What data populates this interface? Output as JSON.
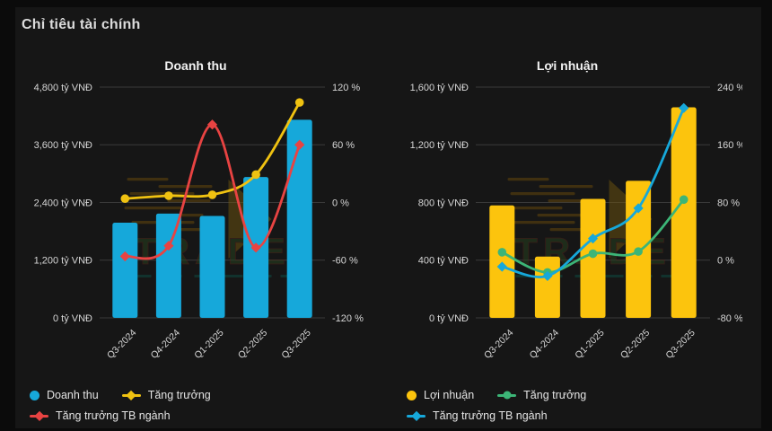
{
  "page_title": "Chỉ tiêu tài chính",
  "watermark_text": "TRADE",
  "colors": {
    "background": "#0b0b0b",
    "card": "#161616",
    "grid": "#3a3a3a",
    "axis_text": "#d6d6d6",
    "title_text": "#f2f2f2",
    "cyan": "#16a8da",
    "yellow": "#fcc40d",
    "red": "#e84342",
    "green": "#3cb577"
  },
  "chart_data": [
    {
      "type": "bar",
      "title": "Doanh thu",
      "categories": [
        "Q3-2024",
        "Q4-2024",
        "Q1-2025",
        "Q2-2025",
        "Q3-2025"
      ],
      "grid": true,
      "legend_position": "bottom",
      "left_axis": {
        "unit": "tỷ VNĐ",
        "min": 0,
        "max": 4800,
        "ticks": [
          0,
          1200,
          2400,
          3600,
          4800
        ],
        "labels": [
          "0 tỷ VNĐ",
          "1,200 tỷ VNĐ",
          "2,400 tỷ VNĐ",
          "3,600 tỷ VNĐ",
          "4,800 tỷ VNĐ"
        ]
      },
      "right_axis": {
        "unit": "%",
        "min": -120,
        "max": 120,
        "ticks": [
          -120,
          -60,
          0,
          60,
          120
        ],
        "labels": [
          "-120 %",
          "-60 %",
          "0 %",
          "60 %",
          "120 %"
        ]
      },
      "series": [
        {
          "name": "Doanh thu",
          "type": "bar",
          "axis": "left",
          "color": "#16a8da",
          "values": [
            1980,
            2170,
            2120,
            2930,
            4120
          ]
        },
        {
          "name": "Tăng trưởng",
          "type": "line",
          "axis": "right",
          "color": "#f0c211",
          "marker": "circle",
          "values": [
            4,
            7,
            8,
            29,
            104
          ]
        },
        {
          "name": "Tăng trưởng TB ngành",
          "type": "line",
          "axis": "right",
          "color": "#e84342",
          "marker": "diamond",
          "values": [
            -56,
            -45,
            81,
            -47,
            60
          ]
        }
      ],
      "legend": [
        {
          "label": "Doanh thu",
          "marker": "dot",
          "color": "#16a8da"
        },
        {
          "label": "Tăng trưởng",
          "marker": "line-diamond",
          "color": "#f0c211"
        },
        {
          "label": "Tăng trưởng TB ngành",
          "marker": "line-diamond",
          "color": "#e84342"
        }
      ]
    },
    {
      "type": "bar",
      "title": "Lợi nhuận",
      "categories": [
        "Q3-2024",
        "Q4-2024",
        "Q1-2025",
        "Q2-2025",
        "Q3-2025"
      ],
      "grid": true,
      "legend_position": "bottom",
      "left_axis": {
        "unit": "tỷ VNĐ",
        "min": 0,
        "max": 1600,
        "ticks": [
          0,
          400,
          800,
          1200,
          1600
        ],
        "labels": [
          "0 tỷ VNĐ",
          "400 tỷ VNĐ",
          "800 tỷ VNĐ",
          "1,200 tỷ VNĐ",
          "1,600 tỷ VNĐ"
        ]
      },
      "right_axis": {
        "unit": "%",
        "min": -80,
        "max": 240,
        "ticks": [
          -80,
          0,
          80,
          160,
          240
        ],
        "labels": [
          "-80 %",
          "0 %",
          "80 %",
          "160 %",
          "240 %"
        ]
      },
      "series": [
        {
          "name": "Lợi nhuận",
          "type": "bar",
          "axis": "left",
          "color": "#fcc40d",
          "values": [
            780,
            425,
            825,
            950,
            1460
          ]
        },
        {
          "name": "Tăng trưởng",
          "type": "line",
          "axis": "right",
          "color": "#3cb577",
          "marker": "circle",
          "values": [
            11,
            -17,
            9,
            12,
            84
          ]
        },
        {
          "name": "Tăng trưởng TB ngành",
          "type": "line",
          "axis": "right",
          "color": "#16a8da",
          "marker": "diamond",
          "values": [
            -9,
            -22,
            30,
            72,
            211
          ]
        }
      ],
      "legend": [
        {
          "label": "Lợi nhuận",
          "marker": "dot",
          "color": "#fcc40d"
        },
        {
          "label": "Tăng trưởng",
          "marker": "line-circle",
          "color": "#3cb577"
        },
        {
          "label": "Tăng trưởng TB ngành",
          "marker": "line-diamond",
          "color": "#16a8da"
        }
      ]
    }
  ]
}
